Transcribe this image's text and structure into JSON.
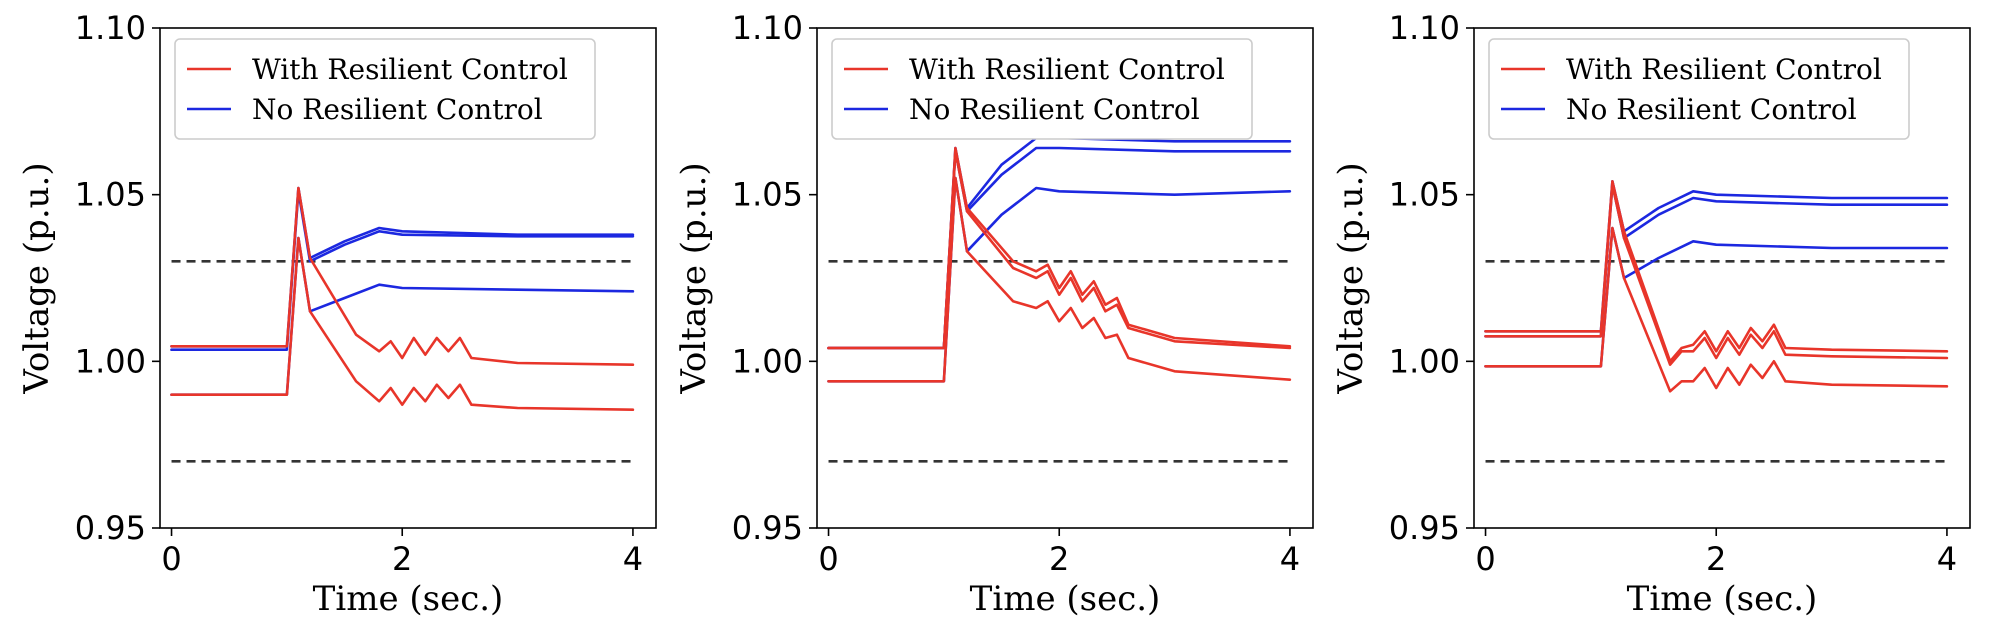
{
  "colors": {
    "with_resilient": "#e8352a",
    "no_resilient": "#1c28e0",
    "limit": "#333333"
  },
  "chart_data": [
    {
      "type": "line",
      "xlabel": "Time (sec.)",
      "ylabel": "Voltage (p.u.)",
      "xlim": [
        -0.1,
        4.2
      ],
      "ylim": [
        0.95,
        1.1
      ],
      "xticks": [
        0,
        2,
        4
      ],
      "yticks": [
        0.95,
        1.0,
        1.05,
        1.1
      ],
      "ytick_labels": [
        "0.95",
        "1.00",
        "1.05",
        "1.10"
      ],
      "xtick_labels": [
        "0",
        "2",
        "4"
      ],
      "legend": [
        "With Resilient Control",
        "No Resilient Control"
      ],
      "legend_position": "top-left",
      "limits": [
        1.03,
        0.97
      ],
      "series": [
        {
          "name": "No Resilient Control",
          "x": [
            0,
            1,
            1.1,
            1.2,
            1.5,
            1.8,
            2,
            3,
            4
          ],
          "y": [
            1.0045,
            1.0045,
            1.052,
            1.031,
            1.036,
            1.04,
            1.039,
            1.038,
            1.038
          ]
        },
        {
          "name": "No Resilient Control",
          "x": [
            0,
            1,
            1.1,
            1.2,
            1.5,
            1.8,
            2,
            3,
            4
          ],
          "y": [
            1.0035,
            1.0035,
            1.051,
            1.03,
            1.035,
            1.039,
            1.038,
            1.0375,
            1.0375
          ]
        },
        {
          "name": "No Resilient Control",
          "x": [
            0,
            1,
            1.1,
            1.2,
            1.5,
            1.8,
            2,
            3,
            4
          ],
          "y": [
            0.99,
            0.99,
            1.037,
            1.015,
            1.019,
            1.023,
            1.022,
            1.0215,
            1.021
          ]
        },
        {
          "name": "With Resilient Control",
          "x": [
            0,
            1,
            1.1,
            1.2,
            1.6,
            1.8,
            1.9,
            2.0,
            2.1,
            2.2,
            2.3,
            2.4,
            2.5,
            2.6,
            3,
            4
          ],
          "y": [
            1.0045,
            1.0045,
            1.052,
            1.031,
            1.008,
            1.003,
            1.006,
            1.001,
            1.007,
            1.002,
            1.007,
            1.003,
            1.007,
            1.001,
            0.9995,
            0.999
          ]
        },
        {
          "name": "With Resilient Control",
          "x": [
            0,
            1,
            1.1,
            1.2,
            1.6,
            1.8,
            1.9,
            2.0,
            2.1,
            2.2,
            2.3,
            2.4,
            2.5,
            2.6,
            3,
            4
          ],
          "y": [
            0.99,
            0.99,
            1.037,
            1.015,
            0.994,
            0.988,
            0.992,
            0.987,
            0.992,
            0.988,
            0.993,
            0.989,
            0.993,
            0.987,
            0.986,
            0.9855
          ]
        }
      ]
    },
    {
      "type": "line",
      "xlabel": "Time (sec.)",
      "ylabel": "Voltage (p.u.)",
      "xlim": [
        -0.1,
        4.2
      ],
      "ylim": [
        0.95,
        1.1
      ],
      "xticks": [
        0,
        2,
        4
      ],
      "yticks": [
        0.95,
        1.0,
        1.05,
        1.1
      ],
      "ytick_labels": [
        "0.95",
        "1.00",
        "1.05",
        "1.10"
      ],
      "xtick_labels": [
        "0",
        "2",
        "4"
      ],
      "legend": [
        "With Resilient Control",
        "No Resilient Control"
      ],
      "legend_position": "top-left",
      "limits": [
        1.03,
        0.97
      ],
      "series": [
        {
          "name": "No Resilient Control",
          "x": [
            0,
            1,
            1.1,
            1.2,
            1.5,
            1.8,
            2,
            3,
            4
          ],
          "y": [
            1.004,
            1.004,
            1.064,
            1.046,
            1.059,
            1.067,
            1.067,
            1.066,
            1.066
          ]
        },
        {
          "name": "No Resilient Control",
          "x": [
            0,
            1,
            1.1,
            1.2,
            1.5,
            1.8,
            2,
            3,
            4
          ],
          "y": [
            1.004,
            1.004,
            1.063,
            1.045,
            1.056,
            1.064,
            1.064,
            1.063,
            1.063
          ]
        },
        {
          "name": "No Resilient Control",
          "x": [
            0,
            1,
            1.1,
            1.2,
            1.5,
            1.8,
            2,
            3,
            4
          ],
          "y": [
            0.994,
            0.994,
            1.055,
            1.033,
            1.044,
            1.052,
            1.051,
            1.05,
            1.051
          ]
        },
        {
          "name": "With Resilient Control",
          "x": [
            0,
            1,
            1.1,
            1.2,
            1.6,
            1.8,
            1.9,
            2.0,
            2.1,
            2.2,
            2.3,
            2.4,
            2.5,
            2.6,
            3,
            4
          ],
          "y": [
            1.004,
            1.004,
            1.064,
            1.046,
            1.03,
            1.027,
            1.029,
            1.022,
            1.027,
            1.02,
            1.024,
            1.017,
            1.019,
            1.011,
            1.007,
            1.0045
          ]
        },
        {
          "name": "With Resilient Control",
          "x": [
            0,
            1,
            1.1,
            1.2,
            1.6,
            1.8,
            1.9,
            2.0,
            2.1,
            2.2,
            2.3,
            2.4,
            2.5,
            2.6,
            3,
            4
          ],
          "y": [
            1.004,
            1.004,
            1.063,
            1.045,
            1.028,
            1.025,
            1.027,
            1.02,
            1.025,
            1.018,
            1.022,
            1.015,
            1.017,
            1.01,
            1.006,
            1.004
          ]
        },
        {
          "name": "With Resilient Control",
          "x": [
            0,
            1,
            1.1,
            1.2,
            1.6,
            1.8,
            1.9,
            2.0,
            2.1,
            2.2,
            2.3,
            2.4,
            2.5,
            2.6,
            3,
            4
          ],
          "y": [
            0.994,
            0.994,
            1.055,
            1.033,
            1.018,
            1.016,
            1.018,
            1.012,
            1.016,
            1.01,
            1.013,
            1.007,
            1.008,
            1.001,
            0.997,
            0.9945
          ]
        }
      ]
    },
    {
      "type": "line",
      "xlabel": "Time (sec.)",
      "ylabel": "Voltage (p.u.)",
      "xlim": [
        -0.1,
        4.2
      ],
      "ylim": [
        0.95,
        1.1
      ],
      "xticks": [
        0,
        2,
        4
      ],
      "yticks": [
        0.95,
        1.0,
        1.05,
        1.1
      ],
      "ytick_labels": [
        "0.95",
        "1.00",
        "1.05",
        "1.10"
      ],
      "xtick_labels": [
        "0",
        "2",
        "4"
      ],
      "legend": [
        "With Resilient Control",
        "No Resilient Control"
      ],
      "legend_position": "top-left",
      "limits": [
        1.03,
        0.97
      ],
      "series": [
        {
          "name": "No Resilient Control",
          "x": [
            0,
            1,
            1.1,
            1.2,
            1.5,
            1.8,
            2,
            3,
            4
          ],
          "y": [
            1.009,
            1.009,
            1.054,
            1.039,
            1.046,
            1.051,
            1.05,
            1.049,
            1.049
          ]
        },
        {
          "name": "No Resilient Control",
          "x": [
            0,
            1,
            1.1,
            1.2,
            1.5,
            1.8,
            2,
            3,
            4
          ],
          "y": [
            1.0075,
            1.0075,
            1.053,
            1.037,
            1.044,
            1.049,
            1.048,
            1.047,
            1.047
          ]
        },
        {
          "name": "No Resilient Control",
          "x": [
            0,
            1,
            1.1,
            1.2,
            1.5,
            1.8,
            2,
            3,
            4
          ],
          "y": [
            0.9985,
            0.9985,
            1.04,
            1.025,
            1.031,
            1.036,
            1.035,
            1.034,
            1.034
          ]
        },
        {
          "name": "With Resilient Control",
          "x": [
            0,
            1,
            1.1,
            1.2,
            1.6,
            1.7,
            1.8,
            1.9,
            2.0,
            2.1,
            2.2,
            2.3,
            2.4,
            2.5,
            2.6,
            3,
            4
          ],
          "y": [
            1.009,
            1.009,
            1.054,
            1.039,
            1.0,
            1.004,
            1.005,
            1.009,
            1.003,
            1.009,
            1.004,
            1.01,
            1.006,
            1.011,
            1.004,
            1.0035,
            1.003
          ]
        },
        {
          "name": "With Resilient Control",
          "x": [
            0,
            1,
            1.1,
            1.2,
            1.6,
            1.7,
            1.8,
            1.9,
            2.0,
            2.1,
            2.2,
            2.3,
            2.4,
            2.5,
            2.6,
            3,
            4
          ],
          "y": [
            1.0075,
            1.0075,
            1.053,
            1.037,
            0.999,
            1.003,
            1.003,
            1.007,
            1.001,
            1.007,
            1.002,
            1.008,
            1.004,
            1.009,
            1.002,
            1.0015,
            1.001
          ]
        },
        {
          "name": "With Resilient Control",
          "x": [
            0,
            1,
            1.1,
            1.2,
            1.6,
            1.7,
            1.8,
            1.9,
            2.0,
            2.1,
            2.2,
            2.3,
            2.4,
            2.5,
            2.6,
            3,
            4
          ],
          "y": [
            0.9985,
            0.9985,
            1.04,
            1.025,
            0.991,
            0.994,
            0.994,
            0.998,
            0.992,
            0.998,
            0.993,
            0.999,
            0.995,
            1.0,
            0.994,
            0.993,
            0.9925
          ]
        }
      ]
    }
  ]
}
